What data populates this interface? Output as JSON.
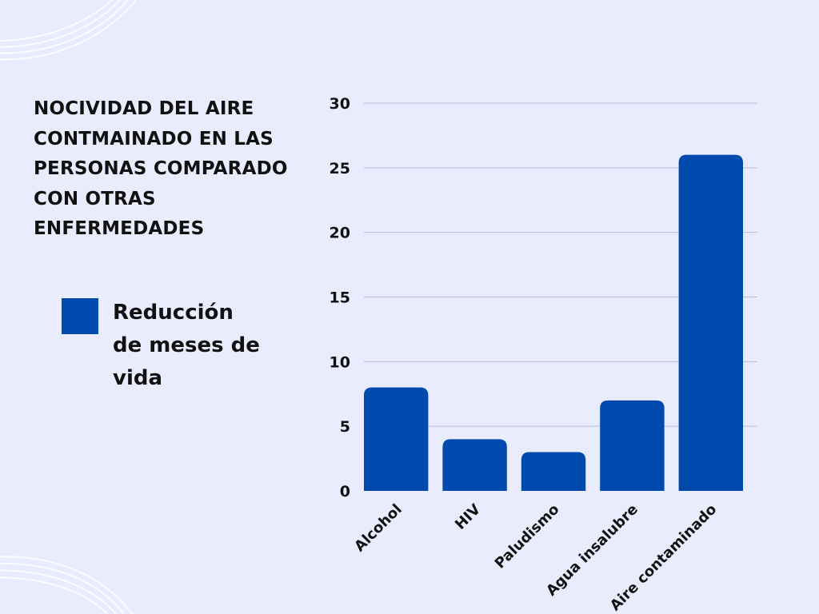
{
  "chart_data": {
    "type": "bar",
    "title": "NOCIVIDAD DEL AIRE\nCONTMAINADO EN LAS\nPERSONAS COMPARADO\nCON OTRAS\nENFERMEDADES",
    "categories": [
      "Alcohol",
      "HIV",
      "Paludismo",
      "Agua insalubre",
      "Aire contaminado"
    ],
    "series": [
      {
        "name": "Reducción de meses de vida",
        "values": [
          8,
          4,
          3,
          7,
          26
        ],
        "color": "#004aad"
      }
    ],
    "ylim": [
      0,
      30
    ],
    "yticks": [
      0,
      5,
      10,
      15,
      20,
      25,
      30
    ],
    "xlabel": "",
    "ylabel": "",
    "grid": true,
    "legend_position": "left"
  }
}
